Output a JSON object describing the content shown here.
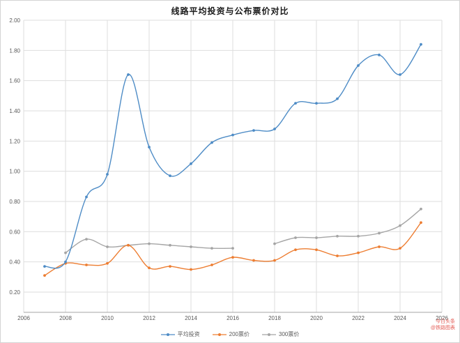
{
  "title": "线路平均投资与公布票价对比",
  "watermark": {
    "line1": "今日头条",
    "line2": "@铁路图表",
    "color": "#e0473f"
  },
  "chart_data": {
    "type": "line",
    "title": "线路平均投资与公布票价对比",
    "xlabel": "",
    "ylabel": "",
    "grid": true,
    "legend_position": "bottom",
    "xlim": [
      2006,
      2026
    ],
    "ylim": [
      0.066,
      2.0
    ],
    "x_ticks": [
      2006,
      2008,
      2010,
      2012,
      2014,
      2016,
      2018,
      2020,
      2022,
      2024,
      2026
    ],
    "y_ticks": [
      "2.00",
      "1.80",
      "1.60",
      "1.40",
      "1.20",
      "1.00",
      "0.80",
      "0.60",
      "0.40",
      "0.20"
    ],
    "x": [
      2007,
      2008,
      2009,
      2010,
      2011,
      2012,
      2013,
      2014,
      2015,
      2016,
      2017,
      2018,
      2019,
      2020,
      2021,
      2022,
      2023,
      2024,
      2025
    ],
    "series": [
      {
        "name": "平均投资",
        "color": "#4e8cc6",
        "values": [
          0.37,
          0.4,
          0.83,
          0.98,
          1.64,
          1.16,
          0.97,
          1.05,
          1.19,
          1.24,
          1.27,
          1.28,
          1.45,
          1.45,
          1.48,
          1.7,
          1.77,
          1.64,
          1.84
        ]
      },
      {
        "name": "200票价",
        "color": "#ed7d31",
        "values": [
          0.31,
          0.39,
          0.38,
          0.39,
          0.51,
          0.36,
          0.37,
          0.35,
          0.38,
          0.43,
          0.41,
          0.41,
          0.48,
          0.48,
          0.44,
          0.46,
          0.5,
          0.49,
          0.66
        ]
      },
      {
        "name": "300票价",
        "color": "#a5a5a5",
        "values": [
          null,
          0.46,
          0.55,
          0.5,
          0.51,
          0.52,
          0.51,
          0.5,
          0.49,
          0.49,
          null,
          0.52,
          0.56,
          0.56,
          0.57,
          0.57,
          0.59,
          0.64,
          0.75
        ]
      }
    ],
    "grid_color": "#dedede",
    "axis_color": "#a6a6a6",
    "tick_color": "#595959"
  }
}
